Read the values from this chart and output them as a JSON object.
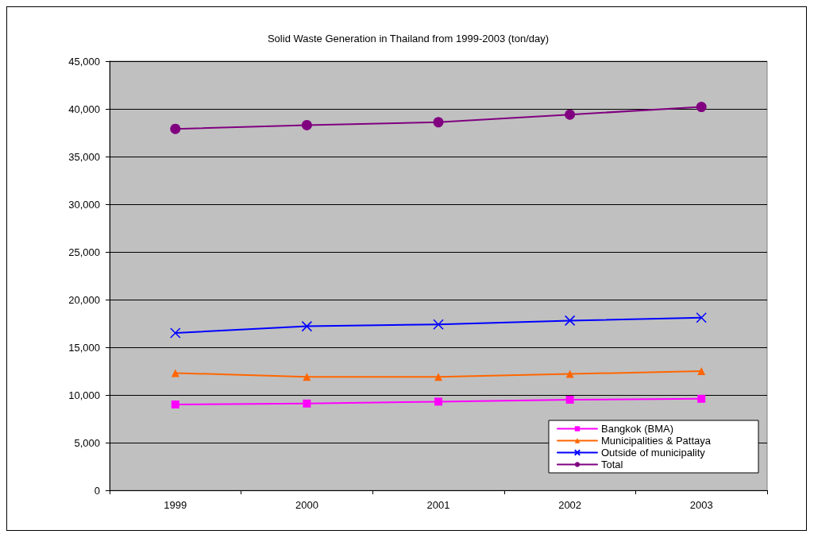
{
  "chart_data": {
    "type": "line",
    "title": "Solid Waste Generation in Thailand from 1999-2003 (ton/day)",
    "categories": [
      "1999",
      "2000",
      "2001",
      "2002",
      "2003"
    ],
    "series": [
      {
        "name": "Bangkok (BMA)",
        "color": "#ff00ff",
        "marker": "square",
        "values": [
          9000,
          9100,
          9300,
          9500,
          9600
        ]
      },
      {
        "name": "Municipalities & Pattaya",
        "color": "#ff6600",
        "marker": "triangle",
        "values": [
          12300,
          11900,
          11900,
          12200,
          12500
        ]
      },
      {
        "name": "Outside of municipality",
        "color": "#0000ff",
        "marker": "cross",
        "values": [
          16500,
          17200,
          17400,
          17800,
          18100
        ]
      },
      {
        "name": "Total",
        "color": "#800080",
        "marker": "circle",
        "values": [
          37900,
          38300,
          38600,
          39400,
          40200
        ]
      }
    ],
    "ylim": [
      0,
      45000
    ],
    "yticks": [
      0,
      {
        "value": 5000,
        "label": "5,000"
      },
      {
        "value": 10000,
        "label": "10,000"
      },
      {
        "value": 15000,
        "label": "15,000"
      },
      {
        "value": 20000,
        "label": "20,000"
      },
      {
        "value": 25000,
        "label": "25,000"
      },
      {
        "value": 30000,
        "label": "30,000"
      },
      {
        "value": 35000,
        "label": "35,000"
      },
      {
        "value": 40000,
        "label": "40,000"
      },
      {
        "value": 45000,
        "label": "45,000"
      }
    ],
    "grid": "y",
    "legend": "bottom right",
    "line_style": "solid"
  }
}
